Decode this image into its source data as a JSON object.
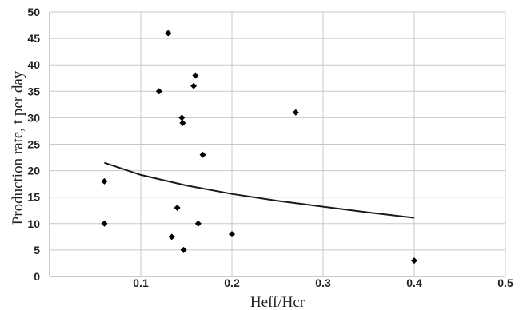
{
  "chart_data": {
    "type": "scatter",
    "xlabel": "Heff/Hcr",
    "ylabel": "Production rate, t per day",
    "xlim": [
      0,
      0.5
    ],
    "ylim": [
      0,
      50
    ],
    "x_ticks": [
      0.1,
      0.2,
      0.3,
      0.4,
      0.5
    ],
    "x_tick_labels": [
      "0.1",
      "0.2",
      "0.3",
      "0.4",
      "0.5"
    ],
    "y_ticks": [
      0,
      5,
      10,
      15,
      20,
      25,
      30,
      35,
      40,
      45,
      50
    ],
    "y_tick_labels": [
      "0",
      "5",
      "10",
      "15",
      "20",
      "25",
      "30",
      "35",
      "40",
      "45",
      "50"
    ],
    "grid": true,
    "legend": "none",
    "series": [
      {
        "type": "scatter",
        "marker": "diamond",
        "color": "#000000",
        "points": [
          {
            "x": 0.06,
            "y": 18
          },
          {
            "x": 0.06,
            "y": 10
          },
          {
            "x": 0.12,
            "y": 35
          },
          {
            "x": 0.13,
            "y": 46
          },
          {
            "x": 0.134,
            "y": 7.5
          },
          {
            "x": 0.14,
            "y": 13
          },
          {
            "x": 0.145,
            "y": 30
          },
          {
            "x": 0.146,
            "y": 29
          },
          {
            "x": 0.147,
            "y": 5
          },
          {
            "x": 0.158,
            "y": 36
          },
          {
            "x": 0.16,
            "y": 38
          },
          {
            "x": 0.163,
            "y": 10
          },
          {
            "x": 0.168,
            "y": 23
          },
          {
            "x": 0.2,
            "y": 8
          },
          {
            "x": 0.27,
            "y": 31
          },
          {
            "x": 0.4,
            "y": 3
          }
        ]
      },
      {
        "type": "line",
        "color": "#1a1a1a",
        "points": [
          {
            "x": 0.06,
            "y": 21.5
          },
          {
            "x": 0.1,
            "y": 19.2
          },
          {
            "x": 0.15,
            "y": 17.2
          },
          {
            "x": 0.2,
            "y": 15.6
          },
          {
            "x": 0.25,
            "y": 14.3
          },
          {
            "x": 0.3,
            "y": 13.2
          },
          {
            "x": 0.35,
            "y": 12.1
          },
          {
            "x": 0.4,
            "y": 11.1
          }
        ]
      }
    ]
  }
}
